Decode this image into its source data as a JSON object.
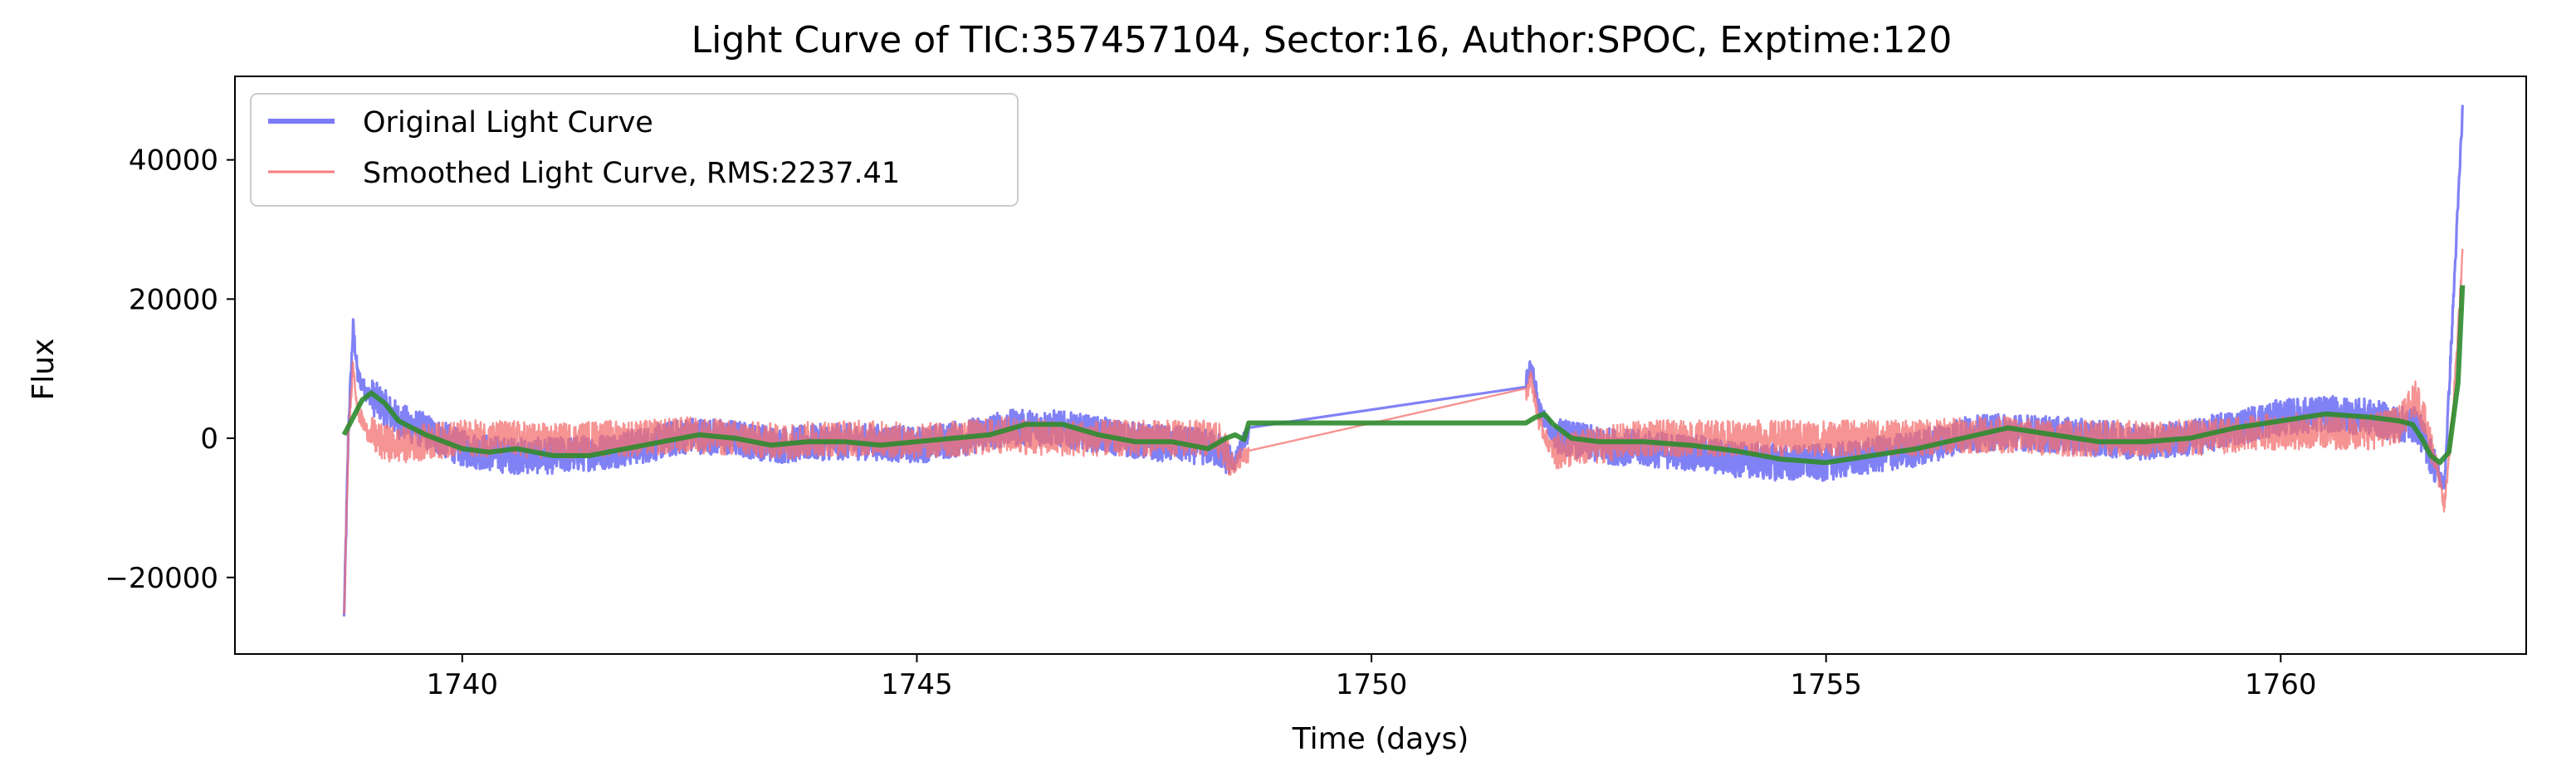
{
  "chart_data": {
    "type": "line",
    "title": "Light Curve of TIC:357457104, Sector:16, Author:SPOC, Exptime:120",
    "xlabel": "Time (days)",
    "ylabel": "Flux",
    "xlim": [
      1737.5,
      1762.7
    ],
    "ylim": [
      -31000,
      52000
    ],
    "xticks": [
      1740,
      1745,
      1750,
      1755,
      1760
    ],
    "xtick_labels": [
      "1740",
      "1745",
      "1750",
      "1755",
      "1760"
    ],
    "yticks": [
      -20000,
      0,
      20000,
      40000
    ],
    "ytick_labels": [
      "−20000",
      "0",
      "20000",
      "40000"
    ],
    "grid": false,
    "legend_position": "top-left",
    "legend": [
      {
        "label": "Original Light Curve",
        "color": "#7b7bf7"
      },
      {
        "label": "Smoothed Light Curve, RMS:2237.41",
        "color": "#f47c7c"
      }
    ],
    "series": [
      {
        "name": "Original Light Curve",
        "color": "#6b6bf5",
        "noise": 2600,
        "x": [
          1738.7,
          1738.75,
          1738.8,
          1738.85,
          1738.95,
          1739.1,
          1739.3,
          1739.6,
          1740.0,
          1740.5,
          1741.0,
          1741.5,
          1742.0,
          1742.5,
          1743.0,
          1743.5,
          1744.0,
          1744.5,
          1745.0,
          1745.5,
          1746.0,
          1746.5,
          1747.0,
          1747.5,
          1748.0,
          1748.3,
          1748.5,
          1748.6,
          1748.65,
          1751.7,
          1751.75,
          1751.85,
          1752.0,
          1752.5,
          1753.0,
          1753.5,
          1754.0,
          1754.5,
          1755.0,
          1755.5,
          1756.0,
          1756.5,
          1757.0,
          1757.5,
          1758.0,
          1758.5,
          1759.0,
          1759.5,
          1760.0,
          1760.5,
          1761.0,
          1761.3,
          1761.5,
          1761.7,
          1761.8,
          1761.9,
          1762.0
        ],
        "y": [
          -26000,
          2000,
          16000,
          9000,
          6500,
          5000,
          2500,
          1000,
          -1500,
          -2500,
          -2500,
          -2000,
          -1000,
          500,
          0,
          -1000,
          -500,
          -500,
          -1000,
          0,
          1500,
          1500,
          500,
          -500,
          -1000,
          -1500,
          -3500,
          -200,
          500,
          8000,
          11000,
          4000,
          500,
          -1000,
          -1500,
          -2000,
          -3000,
          -3500,
          -3500,
          -2500,
          -1500,
          500,
          1000,
          500,
          0,
          -500,
          0,
          1500,
          3000,
          3500,
          3000,
          2000,
          2000,
          -4000,
          -7000,
          20000,
          47000
        ]
      },
      {
        "name": "Smoothed Light Curve, RMS:2237.41",
        "color": "#f36f6f",
        "noise": 2600,
        "x": [
          1738.7,
          1738.75,
          1738.8,
          1738.85,
          1738.95,
          1739.1,
          1739.3,
          1739.6,
          1740.0,
          1740.5,
          1741.0,
          1741.5,
          1742.0,
          1742.5,
          1743.0,
          1743.5,
          1744.0,
          1744.5,
          1745.0,
          1745.5,
          1746.0,
          1746.5,
          1747.0,
          1747.5,
          1748.0,
          1748.3,
          1748.5,
          1748.6,
          1748.65,
          1751.7,
          1751.75,
          1751.85,
          1752.0,
          1752.5,
          1753.0,
          1753.5,
          1754.0,
          1754.5,
          1755.0,
          1755.5,
          1756.0,
          1756.5,
          1757.0,
          1757.5,
          1758.0,
          1758.5,
          1759.0,
          1759.5,
          1760.0,
          1760.5,
          1761.0,
          1761.3,
          1761.5,
          1761.7,
          1761.8,
          1761.9,
          1762.0
        ],
        "y": [
          -26000,
          1000,
          11000,
          4000,
          1000,
          -500,
          -1000,
          -500,
          0,
          0,
          -500,
          0,
          0,
          500,
          0,
          -500,
          0,
          0,
          -500,
          0,
          500,
          0,
          0,
          0,
          0,
          0,
          -4000,
          -2000,
          -2500,
          6000,
          9000,
          2000,
          -2000,
          -1000,
          0,
          0,
          0,
          0,
          0,
          0,
          0,
          500,
          500,
          0,
          0,
          0,
          0,
          500,
          1000,
          1000,
          1000,
          2000,
          6000,
          -3000,
          -10000,
          5000,
          26000
        ]
      },
      {
        "name": "",
        "color": "#2e8b2e",
        "noise": 0,
        "x": [
          1738.7,
          1738.8,
          1738.9,
          1739.0,
          1739.15,
          1739.3,
          1739.6,
          1740.0,
          1740.3,
          1740.6,
          1741.0,
          1741.4,
          1741.8,
          1742.2,
          1742.6,
          1743.0,
          1743.4,
          1743.8,
          1744.2,
          1744.6,
          1745.0,
          1745.4,
          1745.8,
          1746.2,
          1746.6,
          1747.0,
          1747.4,
          1747.8,
          1748.2,
          1748.4,
          1748.5,
          1748.6,
          1748.65,
          1751.7,
          1751.8,
          1751.9,
          1752.0,
          1752.2,
          1752.5,
          1753.0,
          1753.5,
          1754.0,
          1754.5,
          1755.0,
          1755.5,
          1756.0,
          1756.5,
          1757.0,
          1757.5,
          1758.0,
          1758.5,
          1759.0,
          1759.5,
          1760.0,
          1760.5,
          1761.0,
          1761.3,
          1761.45,
          1761.55,
          1761.65,
          1761.75,
          1761.85,
          1761.95,
          1762.0
        ],
        "y": [
          500,
          3000,
          5500,
          6500,
          5000,
          2500,
          500,
          -1500,
          -2000,
          -1500,
          -2500,
          -2500,
          -1500,
          -500,
          500,
          0,
          -1000,
          -500,
          -500,
          -1000,
          -500,
          0,
          500,
          2000,
          2000,
          500,
          -500,
          -500,
          -1500,
          0,
          500,
          -200,
          2200,
          2200,
          3000,
          3500,
          2000,
          0,
          -500,
          -500,
          -1000,
          -1800,
          -3000,
          -3500,
          -2500,
          -1500,
          0,
          1500,
          500,
          -500,
          -500,
          0,
          1500,
          2500,
          3500,
          3000,
          2500,
          2000,
          0,
          -2500,
          -3500,
          -2000,
          8000,
          22000
        ]
      }
    ]
  }
}
